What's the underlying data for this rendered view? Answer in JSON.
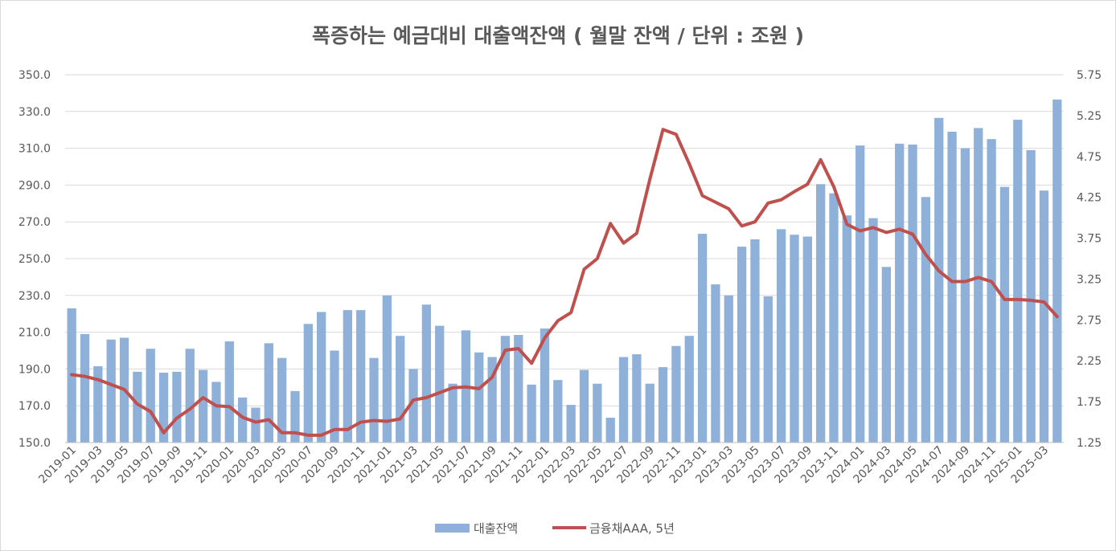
{
  "chart_data": {
    "type": "bar",
    "title": "폭증하는 예금대비 대출액잔액 ( 월말 잔액 / 단위 : 조원 )",
    "xlabel": "",
    "ylabel": "",
    "categories": [
      "2019-01",
      "2019-02",
      "2019-03",
      "2019-04",
      "2019-05",
      "2019-06",
      "2019-07",
      "2019-08",
      "2019-09",
      "2019-10",
      "2019-11",
      "2019-12",
      "2020-01",
      "2020-02",
      "2020-03",
      "2020-04",
      "2020-05",
      "2020-06",
      "2020-07",
      "2020-08",
      "2020-09",
      "2020-10",
      "2020-11",
      "2020-12",
      "2021-01",
      "2021-02",
      "2021-03",
      "2021-04",
      "2021-05",
      "2021-06",
      "2021-07",
      "2021-08",
      "2021-09",
      "2021-10",
      "2021-11",
      "2021-12",
      "2022-01",
      "2022-02",
      "2022-03",
      "2022-04",
      "2022-05",
      "2022-06",
      "2022-07",
      "2022-08",
      "2022-09",
      "2022-10",
      "2022-11",
      "2022-12",
      "2023-01",
      "2023-02",
      "2023-03",
      "2023-04",
      "2023-05",
      "2023-06",
      "2023-07",
      "2023-08",
      "2023-09",
      "2023-10",
      "2023-11",
      "2023-12",
      "2024-01",
      "2024-02",
      "2024-03",
      "2024-04",
      "2024-05",
      "2024-06",
      "2024-07",
      "2024-08",
      "2024-09",
      "2024-10",
      "2024-11",
      "2024-12",
      "2025-01",
      "2025-02",
      "2025-03",
      "2025-04"
    ],
    "x_tick_labels": [
      "2019-01",
      "2019-03",
      "2019-05",
      "2019-07",
      "2019-09",
      "2019-11",
      "2020-01",
      "2020-03",
      "2020-05",
      "2020-07",
      "2020-09",
      "2020-11",
      "2021-01",
      "2021-03",
      "2021-05",
      "2021-07",
      "2021-09",
      "2021-11",
      "2022-01",
      "2022-03",
      "2022-05",
      "2022-07",
      "2022-09",
      "2022-11",
      "2023-01",
      "2023-03",
      "2023-05",
      "2023-07",
      "2023-09",
      "2023-11",
      "2024-01",
      "2024-03",
      "2024-05",
      "2024-07",
      "2024-09",
      "2024-11",
      "2025-01",
      "2025-03"
    ],
    "y_left": {
      "min": 150,
      "max": 350,
      "step": 20,
      "tick_labels": [
        "150.0",
        "170.0",
        "190.0",
        "210.0",
        "230.0",
        "250.0",
        "270.0",
        "290.0",
        "310.0",
        "330.0",
        "350.0"
      ]
    },
    "y_right": {
      "min": 1.25,
      "max": 5.75,
      "step": 0.5,
      "tick_labels": [
        "1.25",
        "1.75",
        "2.25",
        "2.75",
        "3.25",
        "3.75",
        "4.25",
        "4.75",
        "5.25",
        "5.75"
      ]
    },
    "grid": true,
    "legend_position": "bottom",
    "series": [
      {
        "name": "대출잔액",
        "type": "bar",
        "axis": "left",
        "color": "#8eb0d9",
        "values": [
          223,
          209,
          191.5,
          206,
          207,
          188.5,
          201,
          188,
          188.5,
          201,
          189.5,
          183,
          205,
          174.5,
          169,
          204,
          196,
          178,
          214.5,
          221,
          200,
          222,
          222,
          196,
          230,
          208,
          190,
          225,
          213.5,
          182,
          211,
          199,
          196.5,
          208,
          208.5,
          181.5,
          212,
          184,
          170.5,
          189.5,
          182,
          163.5,
          196.5,
          198,
          182,
          191,
          202.5,
          208,
          263.5,
          236,
          230,
          256.5,
          260.5,
          229.5,
          266,
          263,
          262,
          290.5,
          285.5,
          273.5,
          311.5,
          272,
          245.5,
          312.5,
          312,
          283.5,
          326.5,
          319,
          310,
          321,
          315,
          289,
          325.5,
          309,
          287,
          336.5
        ]
      },
      {
        "name": "금융채AAA, 5년",
        "type": "line",
        "axis": "right",
        "color": "#c0504d",
        "values": [
          2.08,
          2.06,
          2.02,
          1.96,
          1.9,
          1.72,
          1.63,
          1.37,
          1.55,
          1.66,
          1.8,
          1.7,
          1.69,
          1.56,
          1.5,
          1.53,
          1.37,
          1.37,
          1.34,
          1.34,
          1.41,
          1.41,
          1.5,
          1.52,
          1.51,
          1.54,
          1.77,
          1.8,
          1.86,
          1.92,
          1.93,
          1.91,
          2.05,
          2.38,
          2.4,
          2.22,
          2.53,
          2.74,
          2.84,
          3.37,
          3.5,
          3.93,
          3.69,
          3.81,
          4.47,
          5.08,
          5.02,
          4.66,
          4.27,
          4.19,
          4.11,
          3.9,
          3.95,
          4.18,
          4.22,
          4.32,
          4.41,
          4.71,
          4.38,
          3.92,
          3.84,
          3.88,
          3.82,
          3.86,
          3.8,
          3.55,
          3.35,
          3.22,
          3.22,
          3.27,
          3.22,
          3.0,
          3.0,
          2.99,
          2.97,
          2.79
        ]
      }
    ]
  }
}
